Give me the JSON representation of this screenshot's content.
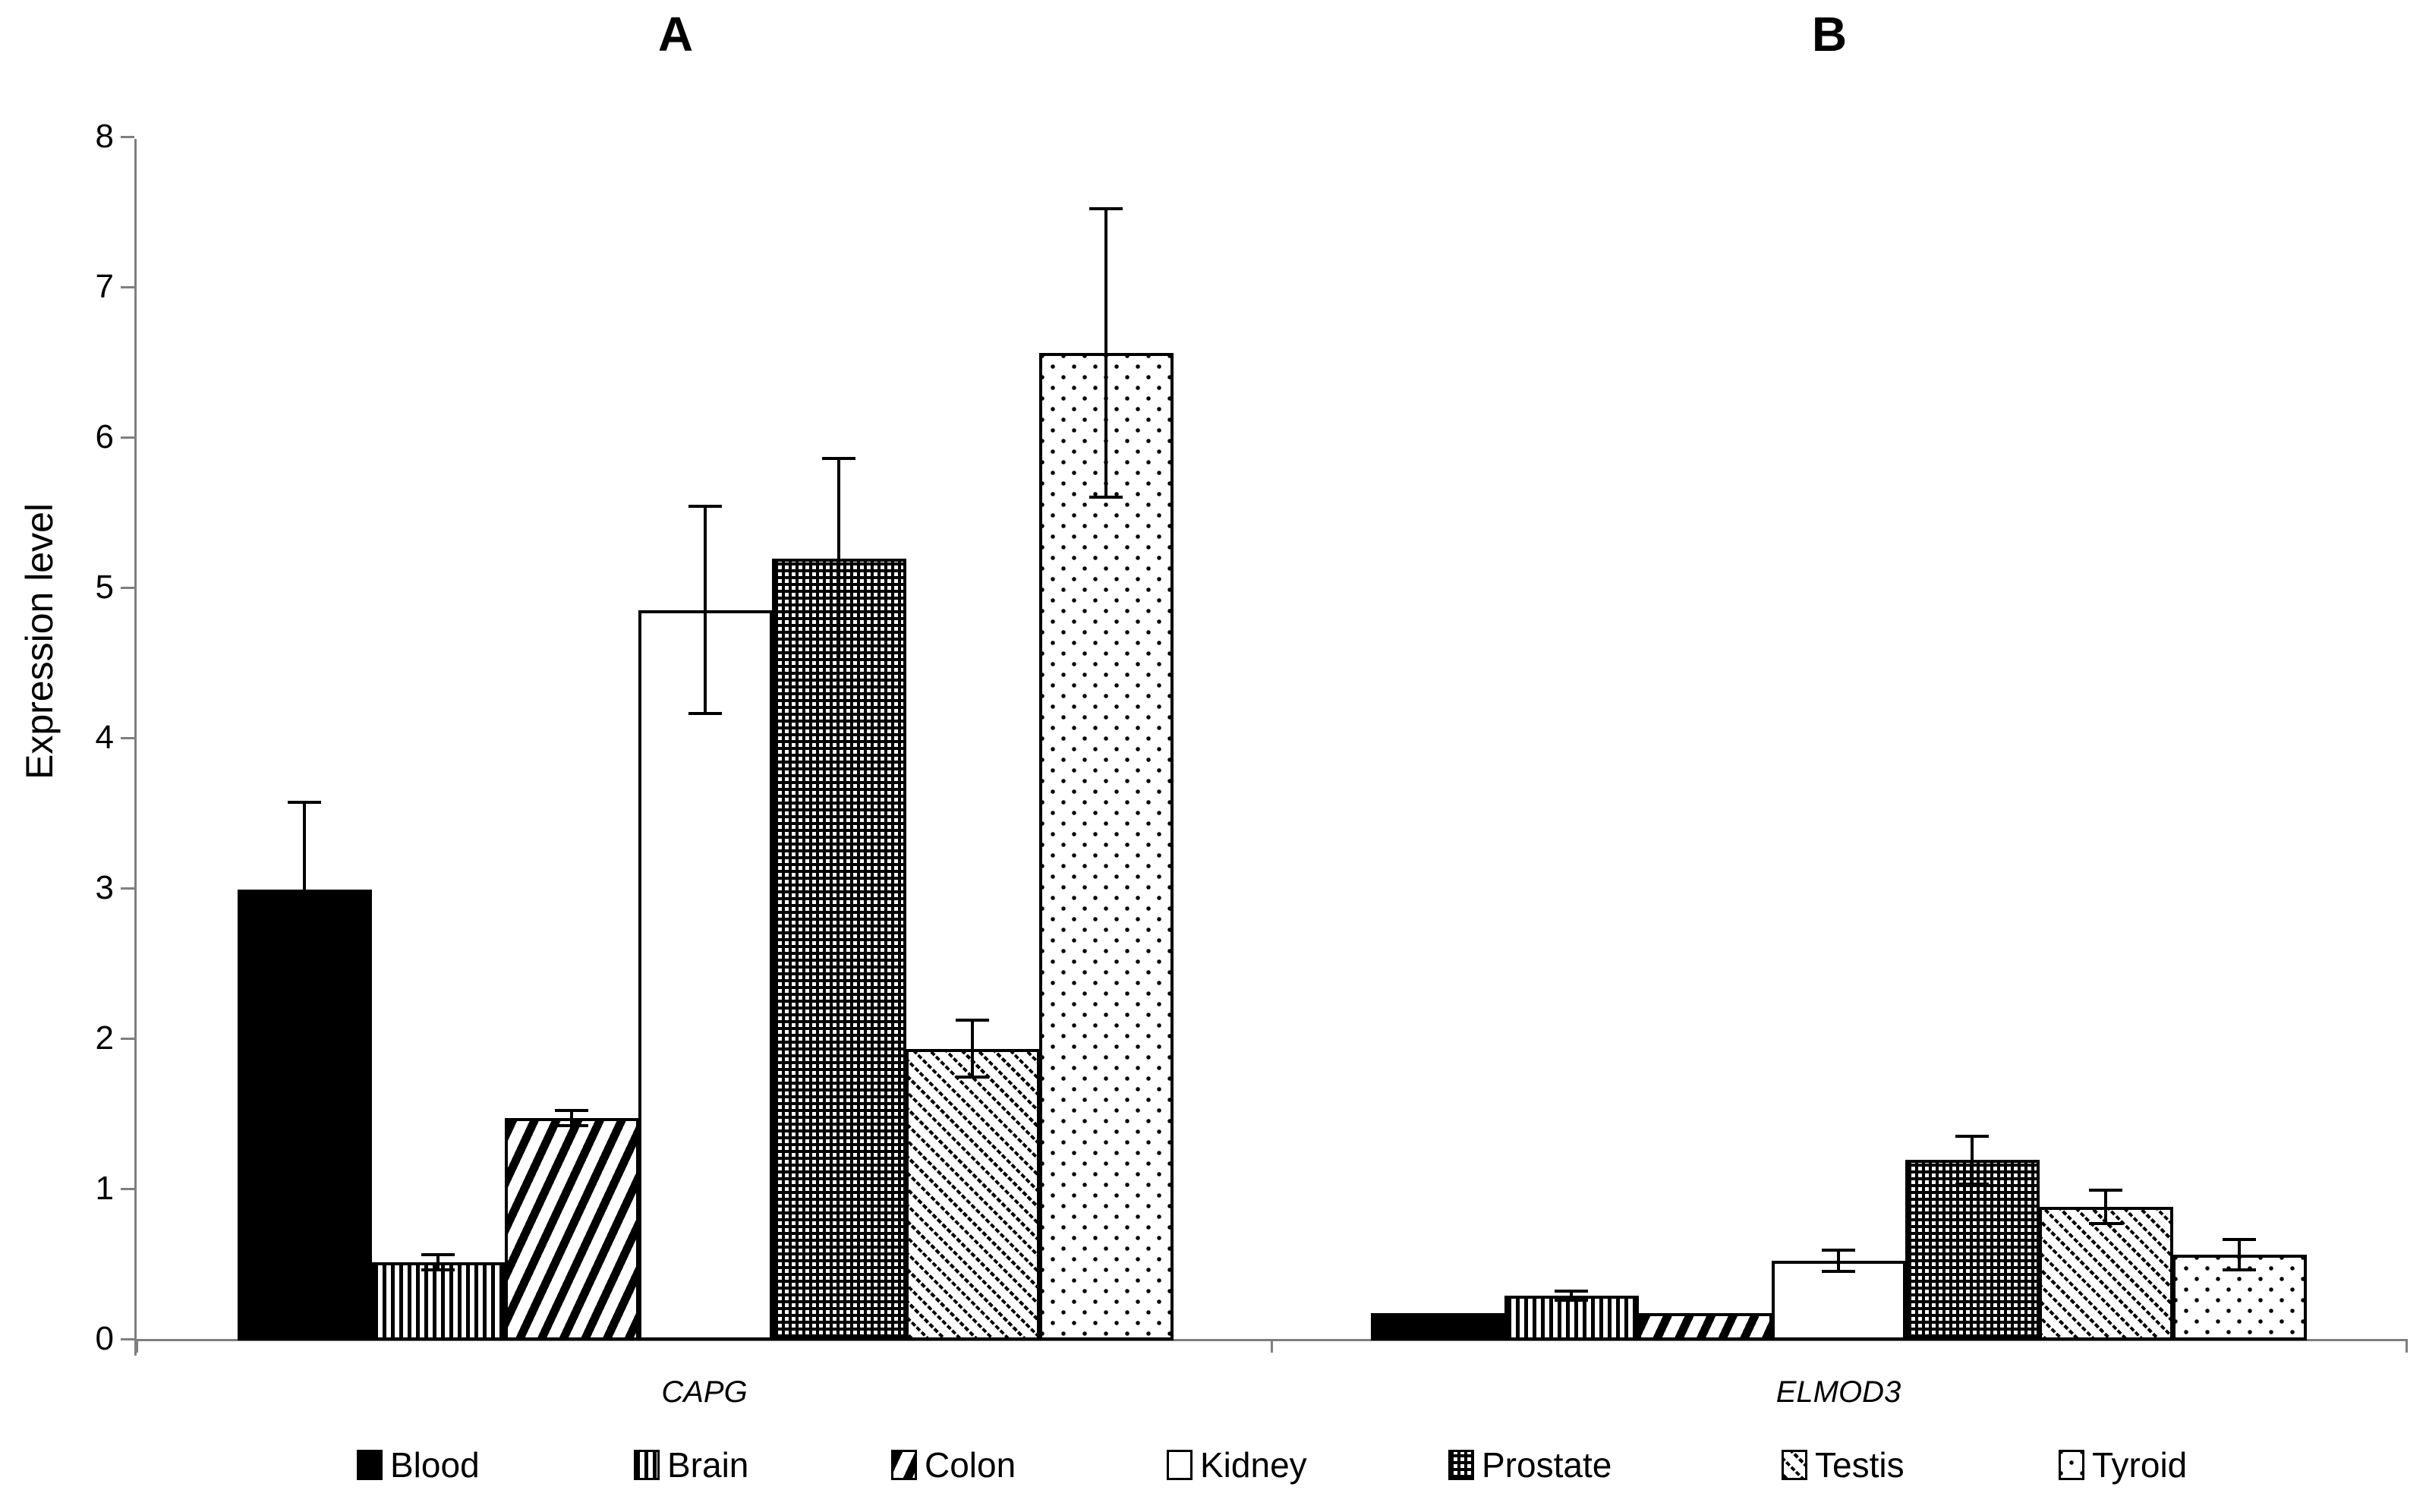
{
  "figure": {
    "y_axis_label": "Expression level"
  },
  "chart_data": {
    "type": "bar",
    "title": "",
    "ylabel": "Expression level",
    "xlabel": "",
    "ylim": [
      0,
      8
    ],
    "y_ticks": [
      0,
      1,
      2,
      3,
      4,
      5,
      6,
      7,
      8
    ],
    "grid": false,
    "legend_position": "bottom",
    "categories": [
      "Blood",
      "Brain",
      "Colon",
      "Kidney",
      "Prostate",
      "Testis",
      "Tyroid"
    ],
    "patterns": [
      "solid-black",
      "vertical-stripes",
      "diagonal-forward",
      "white",
      "checker",
      "diagonal-back-dotted",
      "dots-sparse"
    ],
    "error_bar_style": "plus-minus, capped",
    "panels": [
      {
        "title": "A",
        "gene": "CAPG",
        "values": [
          2.99,
          0.51,
          1.47,
          4.85,
          5.19,
          1.93,
          6.56
        ],
        "errors": [
          0.58,
          0.05,
          0.05,
          0.69,
          0.67,
          0.19,
          0.96
        ]
      },
      {
        "title": "B",
        "gene": "ELMOD3",
        "values": [
          0.17,
          0.29,
          0.17,
          0.52,
          1.19,
          0.88,
          0.56
        ],
        "errors": [
          0,
          0.03,
          0,
          0.07,
          0.16,
          0.11,
          0.1
        ]
      }
    ]
  }
}
